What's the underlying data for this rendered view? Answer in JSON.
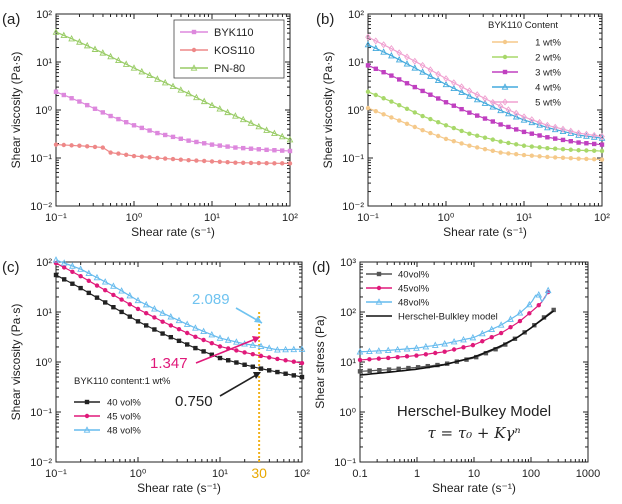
{
  "chart_data": [
    {
      "panel": "(a)",
      "type": "line",
      "xlabel": "Shear rate (s⁻¹)",
      "ylabel": "Shear viscosity (Pa·s)",
      "xscale": "log",
      "yscale": "log",
      "xlim": [
        0.1,
        100
      ],
      "ylim": [
        0.01,
        100
      ],
      "xticks": [
        "10⁻¹",
        "10⁰",
        "10¹",
        "10²"
      ],
      "yticks": [
        "10⁻²",
        "10⁻¹",
        "10⁰",
        "10¹",
        "10²"
      ],
      "legend_position": "top-right",
      "series": [
        {
          "name": "BYK110",
          "color": "#dd88dd",
          "marker": "square",
          "x": [
            0.1,
            0.2,
            0.5,
            1,
            2,
            5,
            10,
            20,
            50,
            100
          ],
          "y": [
            2.4,
            1.5,
            0.75,
            0.48,
            0.33,
            0.23,
            0.19,
            0.165,
            0.148,
            0.14
          ]
        },
        {
          "name": "KOS110",
          "color": "#ee8888",
          "marker": "circle",
          "x": [
            0.1,
            0.2,
            0.4,
            0.5,
            0.6,
            1,
            2,
            5,
            10,
            20,
            50,
            100
          ],
          "y": [
            0.19,
            0.18,
            0.165,
            0.13,
            0.125,
            0.11,
            0.1,
            0.09,
            0.085,
            0.08,
            0.078,
            0.077
          ]
        },
        {
          "name": "PN-80",
          "color": "#99cc66",
          "marker": "triangle",
          "x": [
            0.1,
            0.2,
            0.5,
            1,
            2,
            5,
            10,
            20,
            50,
            100
          ],
          "y": [
            42,
            26,
            13,
            7.5,
            4.4,
            2.2,
            1.25,
            0.75,
            0.38,
            0.24
          ]
        }
      ]
    },
    {
      "panel": "(b)",
      "type": "line",
      "xlabel": "Shear rate (s⁻¹)",
      "ylabel": "Shear viscosity (Pa·s)",
      "xscale": "log",
      "yscale": "log",
      "xlim": [
        0.1,
        100
      ],
      "ylim": [
        0.01,
        100
      ],
      "xticks": [
        "10⁻¹",
        "10⁰",
        "10¹",
        "10²"
      ],
      "yticks": [
        "10⁻²",
        "10⁻¹",
        "10⁰",
        "10¹",
        "10²"
      ],
      "legend_title": "BYK110 Content",
      "legend_position": "top-right",
      "series": [
        {
          "name": "1 wt%",
          "color": "#f5c98a",
          "marker": "circle",
          "x": [
            0.1,
            0.2,
            0.5,
            1,
            2,
            5,
            10,
            20,
            50,
            100
          ],
          "y": [
            1.1,
            0.7,
            0.38,
            0.25,
            0.18,
            0.13,
            0.115,
            0.105,
            0.097,
            0.093
          ]
        },
        {
          "name": "2 wt%",
          "color": "#a8d86a",
          "marker": "circle",
          "x": [
            0.1,
            0.2,
            0.5,
            1,
            2,
            5,
            10,
            20,
            50,
            100
          ],
          "y": [
            2.4,
            1.5,
            0.75,
            0.48,
            0.32,
            0.22,
            0.18,
            0.16,
            0.145,
            0.14
          ]
        },
        {
          "name": "3 wt%",
          "color": "#c040c0",
          "marker": "square",
          "x": [
            0.1,
            0.2,
            0.5,
            1,
            2,
            5,
            10,
            20,
            50,
            100
          ],
          "y": [
            8.5,
            5.2,
            2.5,
            1.45,
            0.88,
            0.5,
            0.35,
            0.27,
            0.21,
            0.19
          ]
        },
        {
          "name": "4 wt%",
          "color": "#44aadd",
          "marker": "triangle",
          "x": [
            0.1,
            0.2,
            0.5,
            1,
            2,
            5,
            10,
            20,
            50,
            100
          ],
          "y": [
            23,
            13.5,
            6.2,
            3.4,
            1.95,
            0.98,
            0.62,
            0.43,
            0.3,
            0.26
          ]
        },
        {
          "name": "5 wt%",
          "color": "#f0a0d0",
          "marker": "diamond",
          "x": [
            0.1,
            0.2,
            0.5,
            1,
            2,
            5,
            10,
            20,
            50,
            100
          ],
          "y": [
            33,
            19,
            8.5,
            4.5,
            2.5,
            1.2,
            0.72,
            0.48,
            0.33,
            0.28
          ]
        }
      ]
    },
    {
      "panel": "(c)",
      "type": "line",
      "xlabel": "Shear rate (s⁻¹)",
      "ylabel": "Shear viscosity (Pa·s)",
      "xscale": "log",
      "yscale": "log",
      "xlim": [
        0.1,
        100
      ],
      "ylim": [
        0.01,
        100
      ],
      "xticks": [
        "10⁻¹",
        "10⁰",
        "10¹",
        "10²"
      ],
      "yticks": [
        "10⁻²",
        "10⁻¹",
        "10⁰",
        "10¹",
        "10²"
      ],
      "legend_title": "BYK110 content:1 wt%",
      "legend_position": "bottom-left",
      "vline_x": 30,
      "vline_label": "30",
      "annotations": [
        "2.089",
        "1.347",
        "0.750"
      ],
      "series": [
        {
          "name": "40 vol%",
          "color": "#222222",
          "marker": "square",
          "x": [
            0.1,
            0.2,
            0.5,
            1,
            2,
            5,
            10,
            20,
            30,
            50,
            100
          ],
          "y": [
            55,
            30,
            12.5,
            6.5,
            3.7,
            1.9,
            1.2,
            0.88,
            0.75,
            0.63,
            0.5
          ]
        },
        {
          "name": "45 vol%",
          "color": "#e0197a",
          "marker": "circle",
          "x": [
            0.1,
            0.2,
            0.5,
            1,
            2,
            5,
            10,
            20,
            30,
            50,
            100
          ],
          "y": [
            95,
            52,
            22,
            11.5,
            6.4,
            3.2,
            2.05,
            1.55,
            1.347,
            1.15,
            0.95
          ]
        },
        {
          "name": "48 vol%",
          "color": "#66bbee",
          "marker": "triangle",
          "x": [
            0.1,
            0.2,
            0.5,
            1,
            2,
            5,
            10,
            20,
            30,
            50,
            100
          ],
          "y": [
            110,
            72,
            33,
            17,
            9.5,
            4.8,
            3.0,
            2.3,
            2.089,
            1.75,
            1.8
          ]
        }
      ]
    },
    {
      "panel": "(d)",
      "type": "line",
      "xlabel": "Shear rate (s⁻¹)",
      "ylabel": "Shear stress (Pa)",
      "xscale": "log",
      "yscale": "log",
      "xlim": [
        0.1,
        1000
      ],
      "ylim": [
        0.1,
        1000
      ],
      "xticks": [
        "0.1",
        "1",
        "10",
        "100",
        "1000"
      ],
      "yticks": [
        "10⁻¹",
        "10⁰",
        "10¹",
        "10²",
        "10³"
      ],
      "legend_position": "top-left",
      "model_title": "Herschel-Bulkey Model",
      "model_equation": "τ = τ₀ + Kγⁿ",
      "series": [
        {
          "name": "40vol%",
          "color": "#555555",
          "marker": "square",
          "x": [
            0.1,
            0.3,
            1,
            3,
            10,
            30,
            60,
            100,
            150,
            250
          ],
          "y": [
            6.5,
            7,
            7.8,
            9,
            12,
            20,
            32,
            48,
            70,
            110
          ]
        },
        {
          "name": "45vol%",
          "color": "#e0197a",
          "marker": "circle",
          "x": [
            0.1,
            0.3,
            1,
            3,
            10,
            30,
            60,
            100,
            150,
            200
          ],
          "y": [
            11,
            12,
            13.5,
            16,
            22,
            38,
            62,
            100,
            150,
            250
          ]
        },
        {
          "name": "48vol%",
          "color": "#66bbee",
          "marker": "triangle",
          "x": [
            0.1,
            0.3,
            1,
            3,
            10,
            30,
            60,
            100,
            130,
            160,
            200
          ],
          "y": [
            16,
            17,
            19,
            23,
            31,
            55,
            90,
            150,
            250,
            150,
            270
          ]
        },
        {
          "name": "Herschel-Bulkley model",
          "color": "#111111",
          "marker": "none",
          "x": [
            0.1,
            0.3,
            1,
            3,
            10,
            30,
            60,
            100,
            150,
            250
          ],
          "y": [
            5.5,
            6.2,
            7.2,
            8.8,
            12.5,
            21,
            32,
            48,
            68,
            105
          ]
        }
      ]
    }
  ]
}
